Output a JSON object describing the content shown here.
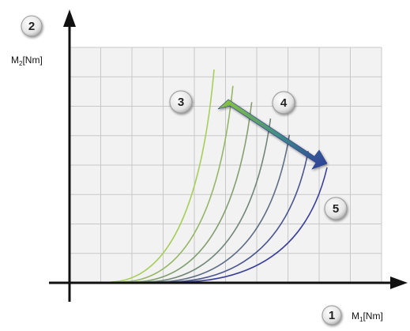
{
  "axes": {
    "x_label_main": "M",
    "x_label_sub": "1",
    "x_label_unit": "[Nm]",
    "y_label_main": "M",
    "y_label_sub": "2",
    "y_label_unit": "[Nm]"
  },
  "badges": [
    {
      "label": "1"
    },
    {
      "label": "2"
    },
    {
      "label": "3"
    },
    {
      "label": "4"
    },
    {
      "label": "5"
    }
  ],
  "colors": {
    "grid_bg": "#f1f1f1",
    "grid_line": "#c8c8c8",
    "axis": "#111111",
    "curve_start": "#a6cf5a",
    "curve_end": "#3a3f9a",
    "arrow_start": "#7fbf3a",
    "arrow_end": "#2f3f9f"
  },
  "curves_count": 7
}
